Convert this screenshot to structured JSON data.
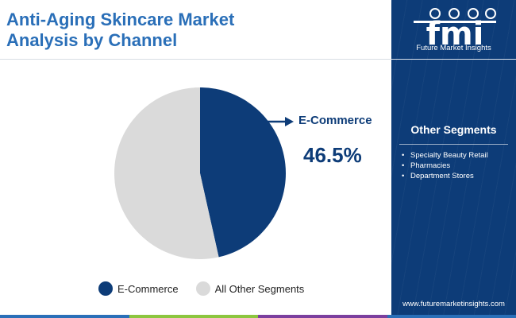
{
  "title_lines": [
    "Anti-Aging Skincare Market",
    "Analysis by Channel"
  ],
  "chart_data": {
    "type": "pie",
    "slices": [
      {
        "label": "E-Commerce",
        "value": 46.5,
        "color": "#0d3c78"
      },
      {
        "label": "All Other Segments",
        "value": 53.5,
        "color": "#dadada"
      }
    ],
    "highlight": {
      "label": "E-Commerce",
      "value_text": "46.5%"
    },
    "legend": [
      "E-Commerce",
      "All Other Segments"
    ],
    "legend_position": "bottom"
  },
  "brand": {
    "logo_text": "fmi",
    "name": "Future Market Insights",
    "url": "www.futuremarketinsights.com",
    "panel_color": "#0d3c78"
  },
  "other_segments": {
    "title": "Other Segments",
    "items": [
      "Specialty Beauty Retail",
      "Pharmacies",
      "Department Stores"
    ]
  },
  "bottom_bar_colors": [
    "#2a6fb8",
    "#8cc63f",
    "#7b3f9e",
    "#2a6fb8"
  ],
  "icons": {
    "arrow": "arrow-right-icon",
    "bullet": "bullet-icon"
  }
}
